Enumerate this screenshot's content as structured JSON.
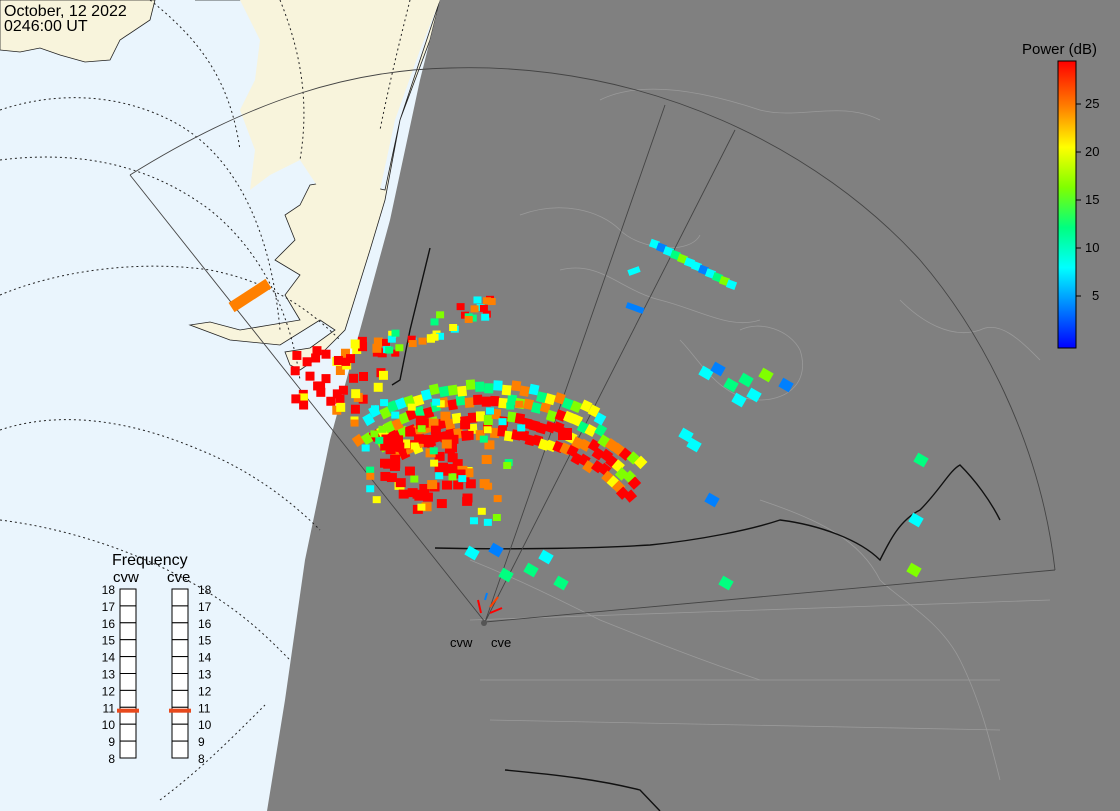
{
  "header": {
    "date": "October, 12 2022",
    "time": "0246:00 UT"
  },
  "colorbar": {
    "title": "Power (dB)",
    "ticks": [
      "25",
      "20",
      "15",
      "10",
      "5"
    ],
    "colors": [
      "#0000ff",
      "#0080ff",
      "#00ffff",
      "#00ff80",
      "#80ff00",
      "#ffff00",
      "#ff8000",
      "#ff0000"
    ]
  },
  "frequency_panel": {
    "title": "Frequency",
    "radars": [
      {
        "name": "cvw",
        "frequency_mhz": 10.8
      },
      {
        "name": "cve",
        "frequency_mhz": 10.8
      }
    ],
    "scale_labels": [
      "18",
      "17",
      "16",
      "15",
      "14",
      "13",
      "12",
      "11",
      "10",
      "9",
      "8"
    ]
  },
  "radar_sites": [
    "cvw",
    "cve"
  ],
  "colors": {
    "night_side": "#808080",
    "day_ocean": "#eaf5fd",
    "day_land": "#f8f4dc",
    "frequency_marker": "#e8491d"
  }
}
